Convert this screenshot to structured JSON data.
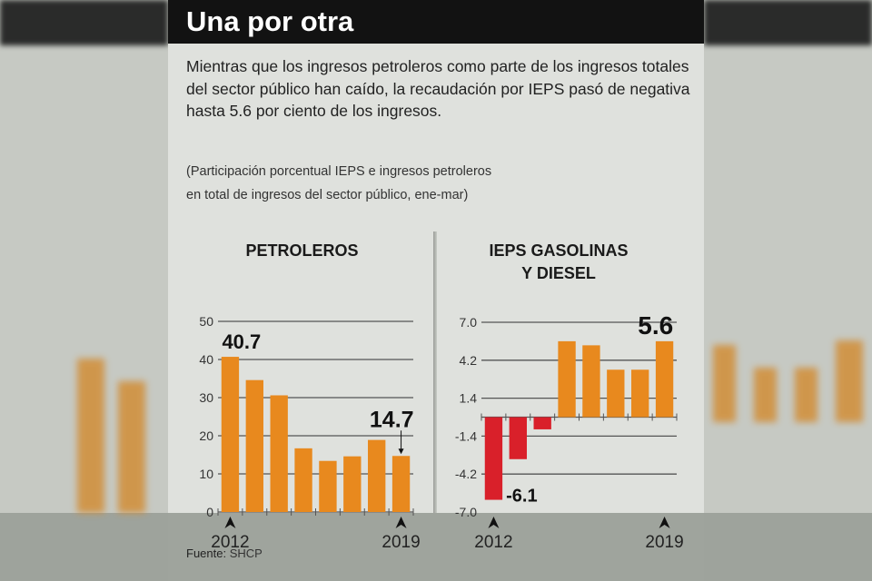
{
  "title": "Una por otra",
  "lead": "Mientras que los ingresos petroleros como parte de los ingresos totales del sector público han caído, la recaudación por IEPS pasó de negativa hasta 5.6 por ciento de los ingresos.",
  "subtitle_line1": "(Participación porcentual IEPS e ingresos petroleros",
  "subtitle_line2": "en total de ingresos del sector público, ene-mar)",
  "source_label": "Fuente:",
  "source_value": "SHCP",
  "colors": {
    "positive": "#e8891e",
    "negative": "#d9202a",
    "title_bar": "#121212",
    "background": "#dfe1dd"
  },
  "chart_data": [
    {
      "type": "bar",
      "title": "PETROLEROS",
      "categories": [
        "2012",
        "2013",
        "2014",
        "2015",
        "2016",
        "2017",
        "2018",
        "2019"
      ],
      "tick_labels": [
        "2012",
        "2019"
      ],
      "values": [
        40.7,
        34.6,
        30.6,
        16.7,
        13.4,
        14.6,
        18.9,
        14.7
      ],
      "data_labels": {
        "first": "40.7",
        "last": "14.7"
      },
      "yticks": [
        "0",
        "10",
        "20",
        "30",
        "40",
        "50"
      ],
      "ylim": [
        0,
        50
      ],
      "grid": true
    },
    {
      "type": "bar",
      "title_line1": "IEPS GASOLINAS",
      "title_line2": "Y DIESEL",
      "categories": [
        "2012",
        "2013",
        "2014",
        "2015",
        "2016",
        "2017",
        "2018",
        "2019"
      ],
      "tick_labels": [
        "2012",
        "2019"
      ],
      "values": [
        -6.1,
        -3.1,
        -0.9,
        5.6,
        5.3,
        3.5,
        3.5,
        5.6
      ],
      "data_labels": {
        "first": "-6.1",
        "last": "5.6"
      },
      "yticks": [
        "-7.0",
        "-4.2",
        "-1.4",
        "1.4",
        "4.2",
        "7.0"
      ],
      "ylim": [
        -7.0,
        7.0
      ],
      "grid": true
    }
  ]
}
